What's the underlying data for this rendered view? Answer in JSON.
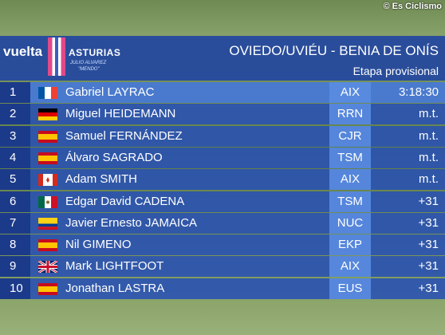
{
  "watermark": "© Es Ciclismo",
  "header": {
    "logo": "vuelta",
    "logo_sub": "ASTURIAS",
    "sponsor": "JULIO ALVAREZ",
    "sponsor_sub": "\"MENDO\"",
    "title": "OVIEDO/UVIÉU - BENIA DE ONÍS",
    "subtitle": "Etapa provisional"
  },
  "table": {
    "rows": [
      [
        1,
        "Gabriel LAYRAC",
        "AIX",
        "3:18:30"
      ],
      [
        2,
        "Miguel HEIDEMANN",
        "RRN",
        "m.t."
      ],
      [
        3,
        "Samuel FERNÁNDEZ",
        "CJR",
        "m.t."
      ],
      [
        4,
        "Álvaro SAGRADO",
        "TSM",
        "m.t."
      ],
      [
        5,
        "Adam SMITH",
        "AIX",
        "m.t."
      ],
      [
        6,
        "Edgar David CADENA",
        "TSM",
        "+31"
      ],
      [
        7,
        "Javier Ernesto JAMAICA",
        "NUC",
        "+31"
      ],
      [
        8,
        "Nil GIMENO",
        "EKP",
        "+31"
      ],
      [
        9,
        "Mark LIGHTFOOT",
        "AIX",
        "+31"
      ],
      [
        10,
        "Jonathan LASTRA",
        "EUS",
        "+31"
      ]
    ]
  }
}
